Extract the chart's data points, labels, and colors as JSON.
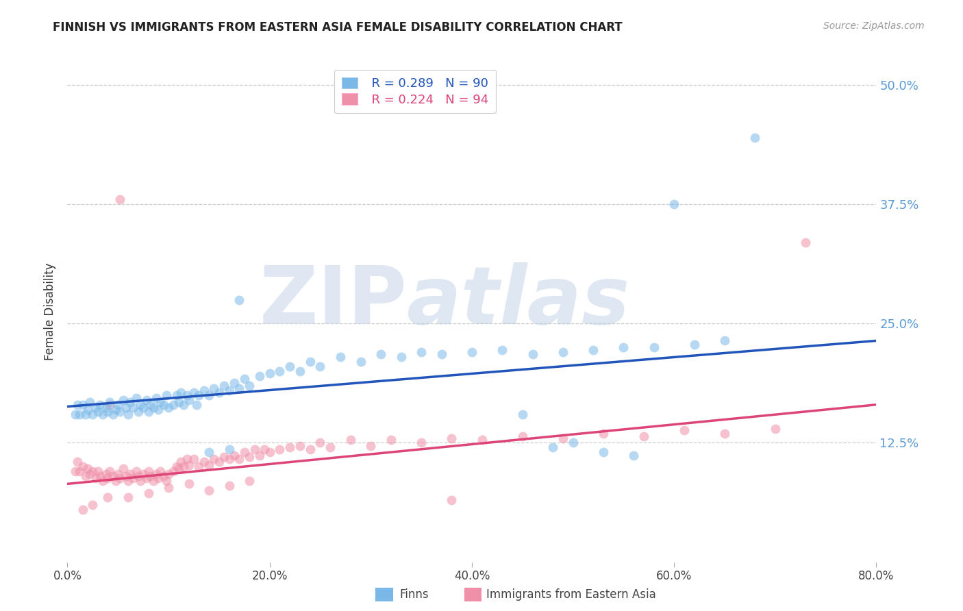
{
  "title": "FINNISH VS IMMIGRANTS FROM EASTERN ASIA FEMALE DISABILITY CORRELATION CHART",
  "source": "Source: ZipAtlas.com",
  "ylabel": "Female Disability",
  "xlabel_ticks": [
    "0.0%",
    "20.0%",
    "40.0%",
    "60.0%",
    "80.0%"
  ],
  "xlabel_vals": [
    0.0,
    0.2,
    0.4,
    0.6,
    0.8
  ],
  "ylabel_ticks": [
    "12.5%",
    "25.0%",
    "37.5%",
    "50.0%"
  ],
  "ylabel_vals": [
    0.125,
    0.25,
    0.375,
    0.5
  ],
  "xlim": [
    0.0,
    0.8
  ],
  "ylim": [
    0.0,
    0.525
  ],
  "finns_R": 0.289,
  "finns_N": 90,
  "immigrants_R": 0.224,
  "immigrants_N": 94,
  "blue_color": "#7ab8e8",
  "pink_color": "#f090a8",
  "blue_line_color": "#2255bb",
  "pink_line_color": "#dd4477",
  "watermark_zip": "ZIP",
  "watermark_atlas": "atlas",
  "legend_label_1": "Finns",
  "legend_label_2": "Immigrants from Eastern Asia",
  "finns_x": [
    0.008,
    0.01,
    0.012,
    0.015,
    0.018,
    0.02,
    0.022,
    0.025,
    0.028,
    0.03,
    0.032,
    0.035,
    0.038,
    0.04,
    0.042,
    0.045,
    0.048,
    0.05,
    0.052,
    0.055,
    0.058,
    0.06,
    0.062,
    0.065,
    0.068,
    0.07,
    0.072,
    0.075,
    0.078,
    0.08,
    0.082,
    0.085,
    0.088,
    0.09,
    0.092,
    0.095,
    0.098,
    0.1,
    0.105,
    0.108,
    0.11,
    0.112,
    0.115,
    0.118,
    0.12,
    0.125,
    0.128,
    0.13,
    0.135,
    0.14,
    0.145,
    0.15,
    0.155,
    0.16,
    0.165,
    0.17,
    0.175,
    0.18,
    0.19,
    0.2,
    0.21,
    0.22,
    0.23,
    0.24,
    0.25,
    0.27,
    0.29,
    0.31,
    0.33,
    0.35,
    0.37,
    0.4,
    0.43,
    0.46,
    0.49,
    0.52,
    0.55,
    0.58,
    0.62,
    0.65,
    0.17,
    0.6,
    0.68,
    0.45,
    0.48,
    0.5,
    0.53,
    0.56,
    0.14,
    0.16
  ],
  "finns_y": [
    0.155,
    0.165,
    0.155,
    0.165,
    0.155,
    0.16,
    0.168,
    0.155,
    0.162,
    0.158,
    0.165,
    0.155,
    0.162,
    0.158,
    0.168,
    0.155,
    0.16,
    0.165,
    0.158,
    0.17,
    0.162,
    0.155,
    0.168,
    0.162,
    0.172,
    0.158,
    0.165,
    0.162,
    0.17,
    0.158,
    0.165,
    0.162,
    0.172,
    0.16,
    0.168,
    0.165,
    0.175,
    0.162,
    0.165,
    0.175,
    0.168,
    0.178,
    0.165,
    0.175,
    0.17,
    0.178,
    0.165,
    0.175,
    0.18,
    0.175,
    0.182,
    0.178,
    0.185,
    0.18,
    0.188,
    0.182,
    0.192,
    0.185,
    0.195,
    0.198,
    0.2,
    0.205,
    0.2,
    0.21,
    0.205,
    0.215,
    0.21,
    0.218,
    0.215,
    0.22,
    0.218,
    0.22,
    0.222,
    0.218,
    0.22,
    0.222,
    0.225,
    0.225,
    0.228,
    0.232,
    0.275,
    0.375,
    0.445,
    0.155,
    0.12,
    0.125,
    0.115,
    0.112,
    0.115,
    0.118
  ],
  "immigrants_x": [
    0.008,
    0.01,
    0.012,
    0.015,
    0.018,
    0.02,
    0.022,
    0.025,
    0.028,
    0.03,
    0.032,
    0.035,
    0.038,
    0.04,
    0.042,
    0.045,
    0.048,
    0.05,
    0.052,
    0.055,
    0.058,
    0.06,
    0.062,
    0.065,
    0.068,
    0.07,
    0.072,
    0.075,
    0.078,
    0.08,
    0.082,
    0.085,
    0.088,
    0.09,
    0.092,
    0.095,
    0.098,
    0.1,
    0.105,
    0.108,
    0.11,
    0.112,
    0.115,
    0.118,
    0.12,
    0.125,
    0.13,
    0.135,
    0.14,
    0.145,
    0.15,
    0.155,
    0.16,
    0.165,
    0.17,
    0.175,
    0.18,
    0.185,
    0.19,
    0.195,
    0.2,
    0.21,
    0.22,
    0.23,
    0.24,
    0.25,
    0.26,
    0.28,
    0.3,
    0.32,
    0.35,
    0.38,
    0.41,
    0.45,
    0.49,
    0.53,
    0.57,
    0.61,
    0.65,
    0.7,
    0.06,
    0.08,
    0.1,
    0.12,
    0.14,
    0.16,
    0.18,
    0.04,
    0.025,
    0.015,
    0.73,
    0.042,
    0.38,
    0.052
  ],
  "immigrants_y": [
    0.095,
    0.105,
    0.095,
    0.1,
    0.09,
    0.098,
    0.092,
    0.095,
    0.088,
    0.095,
    0.09,
    0.085,
    0.092,
    0.088,
    0.095,
    0.09,
    0.085,
    0.092,
    0.088,
    0.098,
    0.09,
    0.085,
    0.092,
    0.088,
    0.095,
    0.09,
    0.085,
    0.092,
    0.088,
    0.095,
    0.09,
    0.085,
    0.092,
    0.088,
    0.095,
    0.09,
    0.085,
    0.092,
    0.095,
    0.1,
    0.098,
    0.105,
    0.1,
    0.108,
    0.102,
    0.108,
    0.1,
    0.105,
    0.102,
    0.108,
    0.105,
    0.11,
    0.108,
    0.112,
    0.108,
    0.115,
    0.11,
    0.118,
    0.112,
    0.118,
    0.115,
    0.118,
    0.12,
    0.122,
    0.118,
    0.125,
    0.12,
    0.128,
    0.122,
    0.128,
    0.125,
    0.13,
    0.128,
    0.132,
    0.13,
    0.135,
    0.132,
    0.138,
    0.135,
    0.14,
    0.068,
    0.072,
    0.078,
    0.082,
    0.075,
    0.08,
    0.085,
    0.068,
    0.06,
    0.055,
    0.335,
    0.165,
    0.065,
    0.38
  ]
}
